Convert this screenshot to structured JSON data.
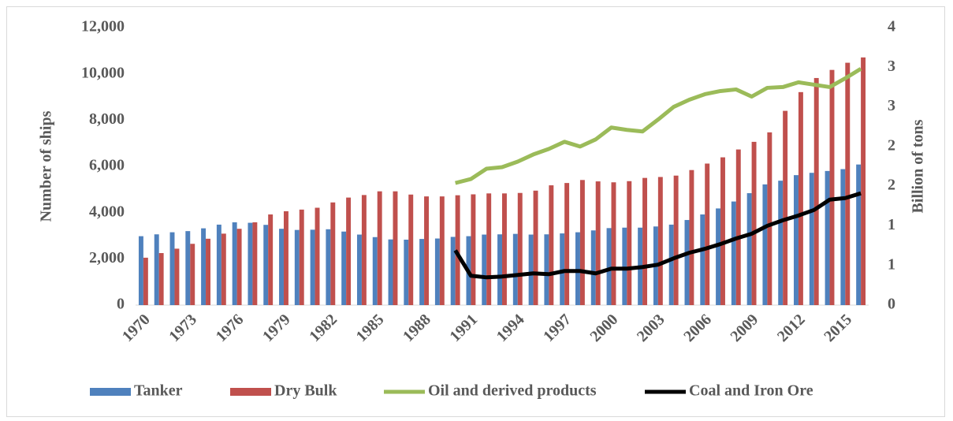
{
  "chart_data": {
    "type": "bar-line",
    "y_label": "Number of ships",
    "y2_label": "Billion of tons",
    "categories": [
      "1970",
      null,
      null,
      "1973",
      null,
      null,
      "1976",
      null,
      null,
      "1979",
      null,
      null,
      "1982",
      null,
      null,
      "1985",
      null,
      null,
      "1988",
      null,
      null,
      "1991",
      null,
      null,
      "1994",
      null,
      null,
      "1997",
      null,
      null,
      "2000",
      null,
      null,
      "2003",
      null,
      null,
      "2006",
      null,
      null,
      "2009",
      null,
      null,
      "2012",
      null,
      null,
      "2015",
      null
    ],
    "series": [
      {
        "name": "Tanker",
        "type": "bar",
        "color": "#4f81bd",
        "values": [
          2980,
          3060,
          3150,
          3200,
          3320,
          3480,
          3580,
          3560,
          3470,
          3300,
          3250,
          3260,
          3280,
          3180,
          3050,
          2940,
          2840,
          2830,
          2860,
          2880,
          2950,
          2980,
          3050,
          3060,
          3080,
          3050,
          3060,
          3100,
          3150,
          3230,
          3330,
          3350,
          3350,
          3400,
          3480,
          3680,
          3920,
          4180,
          4480,
          4840,
          5220,
          5380,
          5620,
          5720,
          5800,
          5880,
          6080
        ]
      },
      {
        "name": "Dry Bulk",
        "type": "bar",
        "color": "#c0504d",
        "values": [
          2050,
          2250,
          2440,
          2650,
          2870,
          3090,
          3300,
          3580,
          3920,
          4060,
          4130,
          4210,
          4440,
          4650,
          4760,
          4920,
          4920,
          4780,
          4700,
          4700,
          4750,
          4790,
          4830,
          4830,
          4850,
          4950,
          5180,
          5280,
          5410,
          5350,
          5310,
          5360,
          5500,
          5540,
          5600,
          5840,
          6120,
          6390,
          6730,
          7060,
          7470,
          8400,
          9210,
          9820,
          10170,
          10480,
          10710
        ]
      },
      {
        "name": "Oil and derived products",
        "type": "line",
        "axis": "y2",
        "color": "#9bbb59",
        "values": [
          null,
          null,
          null,
          null,
          null,
          null,
          null,
          null,
          null,
          null,
          null,
          null,
          null,
          null,
          null,
          null,
          null,
          null,
          null,
          null,
          1.54,
          1.59,
          1.72,
          1.74,
          1.81,
          1.9,
          1.97,
          2.06,
          2.0,
          2.09,
          2.24,
          2.21,
          2.19,
          2.34,
          2.5,
          2.59,
          2.66,
          2.7,
          2.72,
          2.63,
          2.74,
          2.75,
          2.81,
          2.78,
          2.75,
          2.86,
          2.98
        ]
      },
      {
        "name": "Coal and Iron Ore",
        "type": "line",
        "axis": "y2",
        "color": "#000000",
        "values": [
          null,
          null,
          null,
          null,
          null,
          null,
          null,
          null,
          null,
          null,
          null,
          null,
          null,
          null,
          null,
          null,
          null,
          null,
          null,
          null,
          0.69,
          0.37,
          0.35,
          0.36,
          0.38,
          0.4,
          0.39,
          0.43,
          0.43,
          0.4,
          0.46,
          0.46,
          0.48,
          0.51,
          0.59,
          0.66,
          0.71,
          0.77,
          0.84,
          0.9,
          1.0,
          1.07,
          1.13,
          1.2,
          1.33,
          1.35,
          1.41
        ]
      }
    ],
    "ylim": [
      0,
      12000
    ],
    "yticks": [
      0,
      {
        "value": 2000,
        "label": "2,000"
      },
      {
        "value": 4000,
        "label": "4,000"
      },
      {
        "value": 6000,
        "label": "6,000"
      },
      {
        "value": 8000,
        "label": "8,000"
      },
      {
        "value": 10000,
        "label": "10,000"
      },
      {
        "value": 12000,
        "label": "12,000"
      }
    ],
    "y2lim": [
      0,
      3.5
    ],
    "y2ticks": [
      0,
      {
        "value": 0.5,
        "label": "1"
      },
      1,
      {
        "value": 1.5,
        "label": "2"
      },
      2,
      {
        "value": 2.5,
        "label": "3"
      },
      3,
      {
        "value": 3.5,
        "label": "4"
      }
    ],
    "grid": false,
    "legend": "bottom"
  }
}
